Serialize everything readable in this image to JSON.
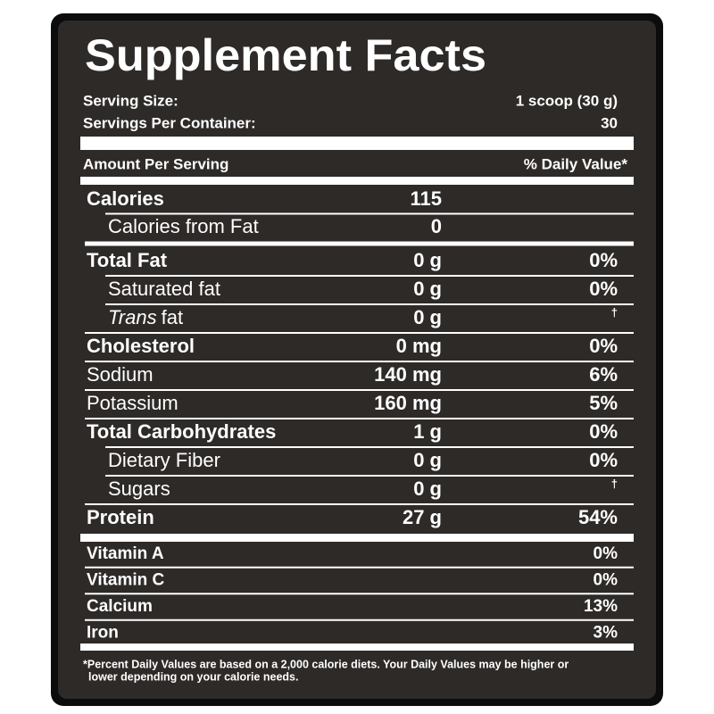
{
  "header": {
    "title": "Supplement Facts",
    "serving_size_label": "Serving Size:",
    "serving_size": "1 scoop (30 g)",
    "servings_label": "Servings Per Container:",
    "servings": "30",
    "amount_label": "Amount Per Serving",
    "dv_label": "% Daily Value*"
  },
  "calories_rows": [
    {
      "name": "Calories",
      "amount": "115",
      "style": "bold"
    },
    {
      "name": "Calories from Fat",
      "amount": "0",
      "style": "sub"
    }
  ],
  "nutrient_rows": [
    {
      "name": "Total Fat",
      "amount": "0 g",
      "dv": "0%",
      "style": "bold"
    },
    {
      "name": "Saturated fat",
      "amount": "0 g",
      "dv": "0%",
      "style": "sub"
    },
    {
      "name_italic": "Trans",
      "name": "fat",
      "amount": "0 g",
      "dv": "†",
      "style": "sub"
    },
    {
      "name": "Cholesterol",
      "amount": "0 mg",
      "dv": "0%",
      "style": "bold"
    },
    {
      "name": "Sodium",
      "amount": "140 mg",
      "dv": "6%",
      "style": "plain"
    },
    {
      "name": "Potassium",
      "amount": "160 mg",
      "dv": "5%",
      "style": "plain"
    },
    {
      "name": "Total Carbohydrates",
      "amount": "1 g",
      "dv": "0%",
      "style": "bold"
    },
    {
      "name": "Dietary Fiber",
      "amount": "0 g",
      "dv": "0%",
      "style": "sub"
    },
    {
      "name": "Sugars",
      "amount": "0 g",
      "dv": "†",
      "style": "sub"
    },
    {
      "name": "Protein",
      "amount": "27 g",
      "dv": "54%",
      "style": "bold"
    }
  ],
  "vitamin_rows": [
    {
      "name": "Vitamin A",
      "dv": "0%"
    },
    {
      "name": "Vitamin C",
      "dv": "0%"
    },
    {
      "name": "Calcium",
      "dv": "13%"
    },
    {
      "name": "Iron",
      "dv": "3%"
    }
  ],
  "footnote": [
    "*Percent Daily Values are based on a 2,000 calorie diets. Your Daily Values may be higher or",
    "lower depending on your calorie needs."
  ]
}
